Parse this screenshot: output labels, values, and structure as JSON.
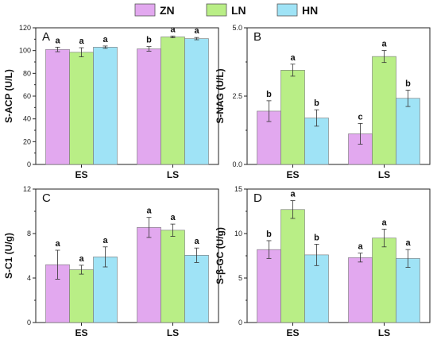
{
  "legend": [
    {
      "name": "ZN",
      "color": "#e2a8ef"
    },
    {
      "name": "LN",
      "color": "#b9ee86"
    },
    {
      "name": "HN",
      "color": "#9fe3f6"
    }
  ],
  "chart_data": [
    {
      "type": "bar",
      "panel_label": "A",
      "ylabel": "S-ACP (U/L)",
      "ylim": [
        0,
        120
      ],
      "yticks": [
        "0",
        "20",
        "40",
        "60",
        "80",
        "100",
        "120"
      ],
      "categories": [
        "ES",
        "LS"
      ],
      "series": [
        {
          "name": "ZN",
          "values": [
            101,
            101.5
          ],
          "errors": [
            2,
            2
          ],
          "letters": [
            "a",
            "b"
          ]
        },
        {
          "name": "LN",
          "values": [
            98.5,
            112
          ],
          "errors": [
            4,
            0.8
          ],
          "letters": [
            "a",
            "a"
          ]
        },
        {
          "name": "HN",
          "values": [
            103,
            110.5
          ],
          "errors": [
            1,
            1
          ],
          "letters": [
            "a",
            "a"
          ]
        }
      ]
    },
    {
      "type": "bar",
      "panel_label": "B",
      "ylabel": "S-NAG (U/L)",
      "ylim": [
        0,
        5
      ],
      "yticks": [
        "0.0",
        "2.5",
        "5.0"
      ],
      "categories": [
        "ES",
        "LS"
      ],
      "series": [
        {
          "name": "ZN",
          "values": [
            1.95,
            1.12
          ],
          "errors": [
            0.38,
            0.38
          ],
          "letters": [
            "b",
            "c"
          ]
        },
        {
          "name": "LN",
          "values": [
            3.45,
            3.95
          ],
          "errors": [
            0.22,
            0.22
          ],
          "letters": [
            "a",
            "a"
          ]
        },
        {
          "name": "HN",
          "values": [
            1.7,
            2.42
          ],
          "errors": [
            0.3,
            0.3
          ],
          "letters": [
            "b",
            "b"
          ]
        }
      ]
    },
    {
      "type": "bar",
      "panel_label": "C",
      "ylabel": "S-C1 (U/g)",
      "ylim": [
        0,
        12
      ],
      "yticks": [
        "0",
        "4",
        "8",
        "12"
      ],
      "categories": [
        "ES",
        "LS"
      ],
      "series": [
        {
          "name": "ZN",
          "values": [
            5.2,
            8.55
          ],
          "errors": [
            1.3,
            0.9
          ],
          "letters": [
            "a",
            "a"
          ]
        },
        {
          "name": "LN",
          "values": [
            4.75,
            8.3
          ],
          "errors": [
            0.4,
            0.55
          ],
          "letters": [
            "a",
            "a"
          ]
        },
        {
          "name": "HN",
          "values": [
            5.9,
            6.05
          ],
          "errors": [
            0.9,
            0.65
          ],
          "letters": [
            "a",
            "a"
          ]
        }
      ]
    },
    {
      "type": "bar",
      "panel_label": "D",
      "ylabel": "S-β-GC  (U/g)",
      "ylim": [
        0,
        15
      ],
      "yticks": [
        "0",
        "5",
        "10",
        "15"
      ],
      "categories": [
        "ES",
        "LS"
      ],
      "series": [
        {
          "name": "ZN",
          "values": [
            8.2,
            7.3
          ],
          "errors": [
            1.0,
            0.5
          ],
          "letters": [
            "b",
            "a"
          ]
        },
        {
          "name": "LN",
          "values": [
            12.7,
            9.5
          ],
          "errors": [
            1.0,
            1.0
          ],
          "letters": [
            "a",
            "a"
          ]
        },
        {
          "name": "HN",
          "values": [
            7.6,
            7.2
          ],
          "errors": [
            1.2,
            1.0
          ],
          "letters": [
            "b",
            "a"
          ]
        }
      ]
    }
  ]
}
